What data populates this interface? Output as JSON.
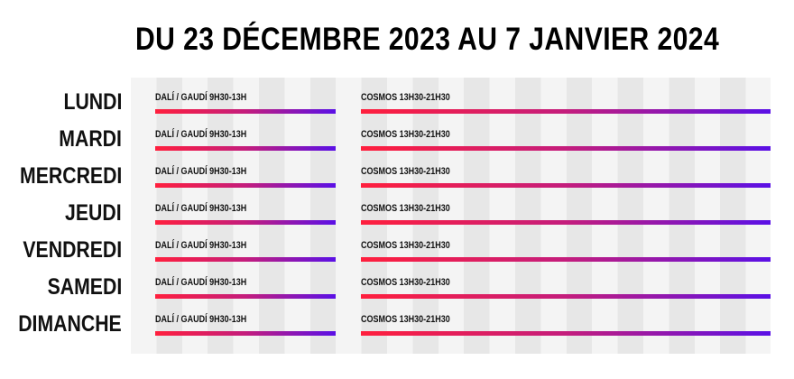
{
  "title": "DU 23 DÉCEMBRE 2023 AU 7 JANVIER 2024",
  "schedule": [
    {
      "day": "LUNDI",
      "slots": [
        "DALÍ / GAUDÍ 9H30-13H",
        "COSMOS 13H30-21H30"
      ]
    },
    {
      "day": "MARDI",
      "slots": [
        "DALÍ / GAUDÍ 9H30-13H",
        "COSMOS 13H30-21H30"
      ]
    },
    {
      "day": "MERCREDI",
      "slots": [
        "DALÍ / GAUDÍ 9H30-13H",
        "COSMOS 13H30-21H30"
      ]
    },
    {
      "day": "JEUDI",
      "slots": [
        "DALÍ / GAUDÍ 9H30-13H",
        "COSMOS 13H30-21H30"
      ]
    },
    {
      "day": "VENDREDI",
      "slots": [
        "DALÍ / GAUDÍ 9H30-13H",
        "COSMOS 13H30-21H30"
      ]
    },
    {
      "day": "SAMEDI",
      "slots": [
        "DALÍ / GAUDÍ 9H30-13H",
        "COSMOS 13H30-21H30"
      ]
    },
    {
      "day": "DIMANCHE",
      "slots": [
        "DALÍ / GAUDÍ 9H30-13H",
        "COSMOS 13H30-21H30"
      ]
    }
  ],
  "colors": {
    "gradient_start": "#ff1f3d",
    "gradient_mid": "#c41d7c",
    "gradient_end": "#5a10e6",
    "grid_light": "#f4f4f4",
    "grid_dark": "#e7e7e7"
  }
}
